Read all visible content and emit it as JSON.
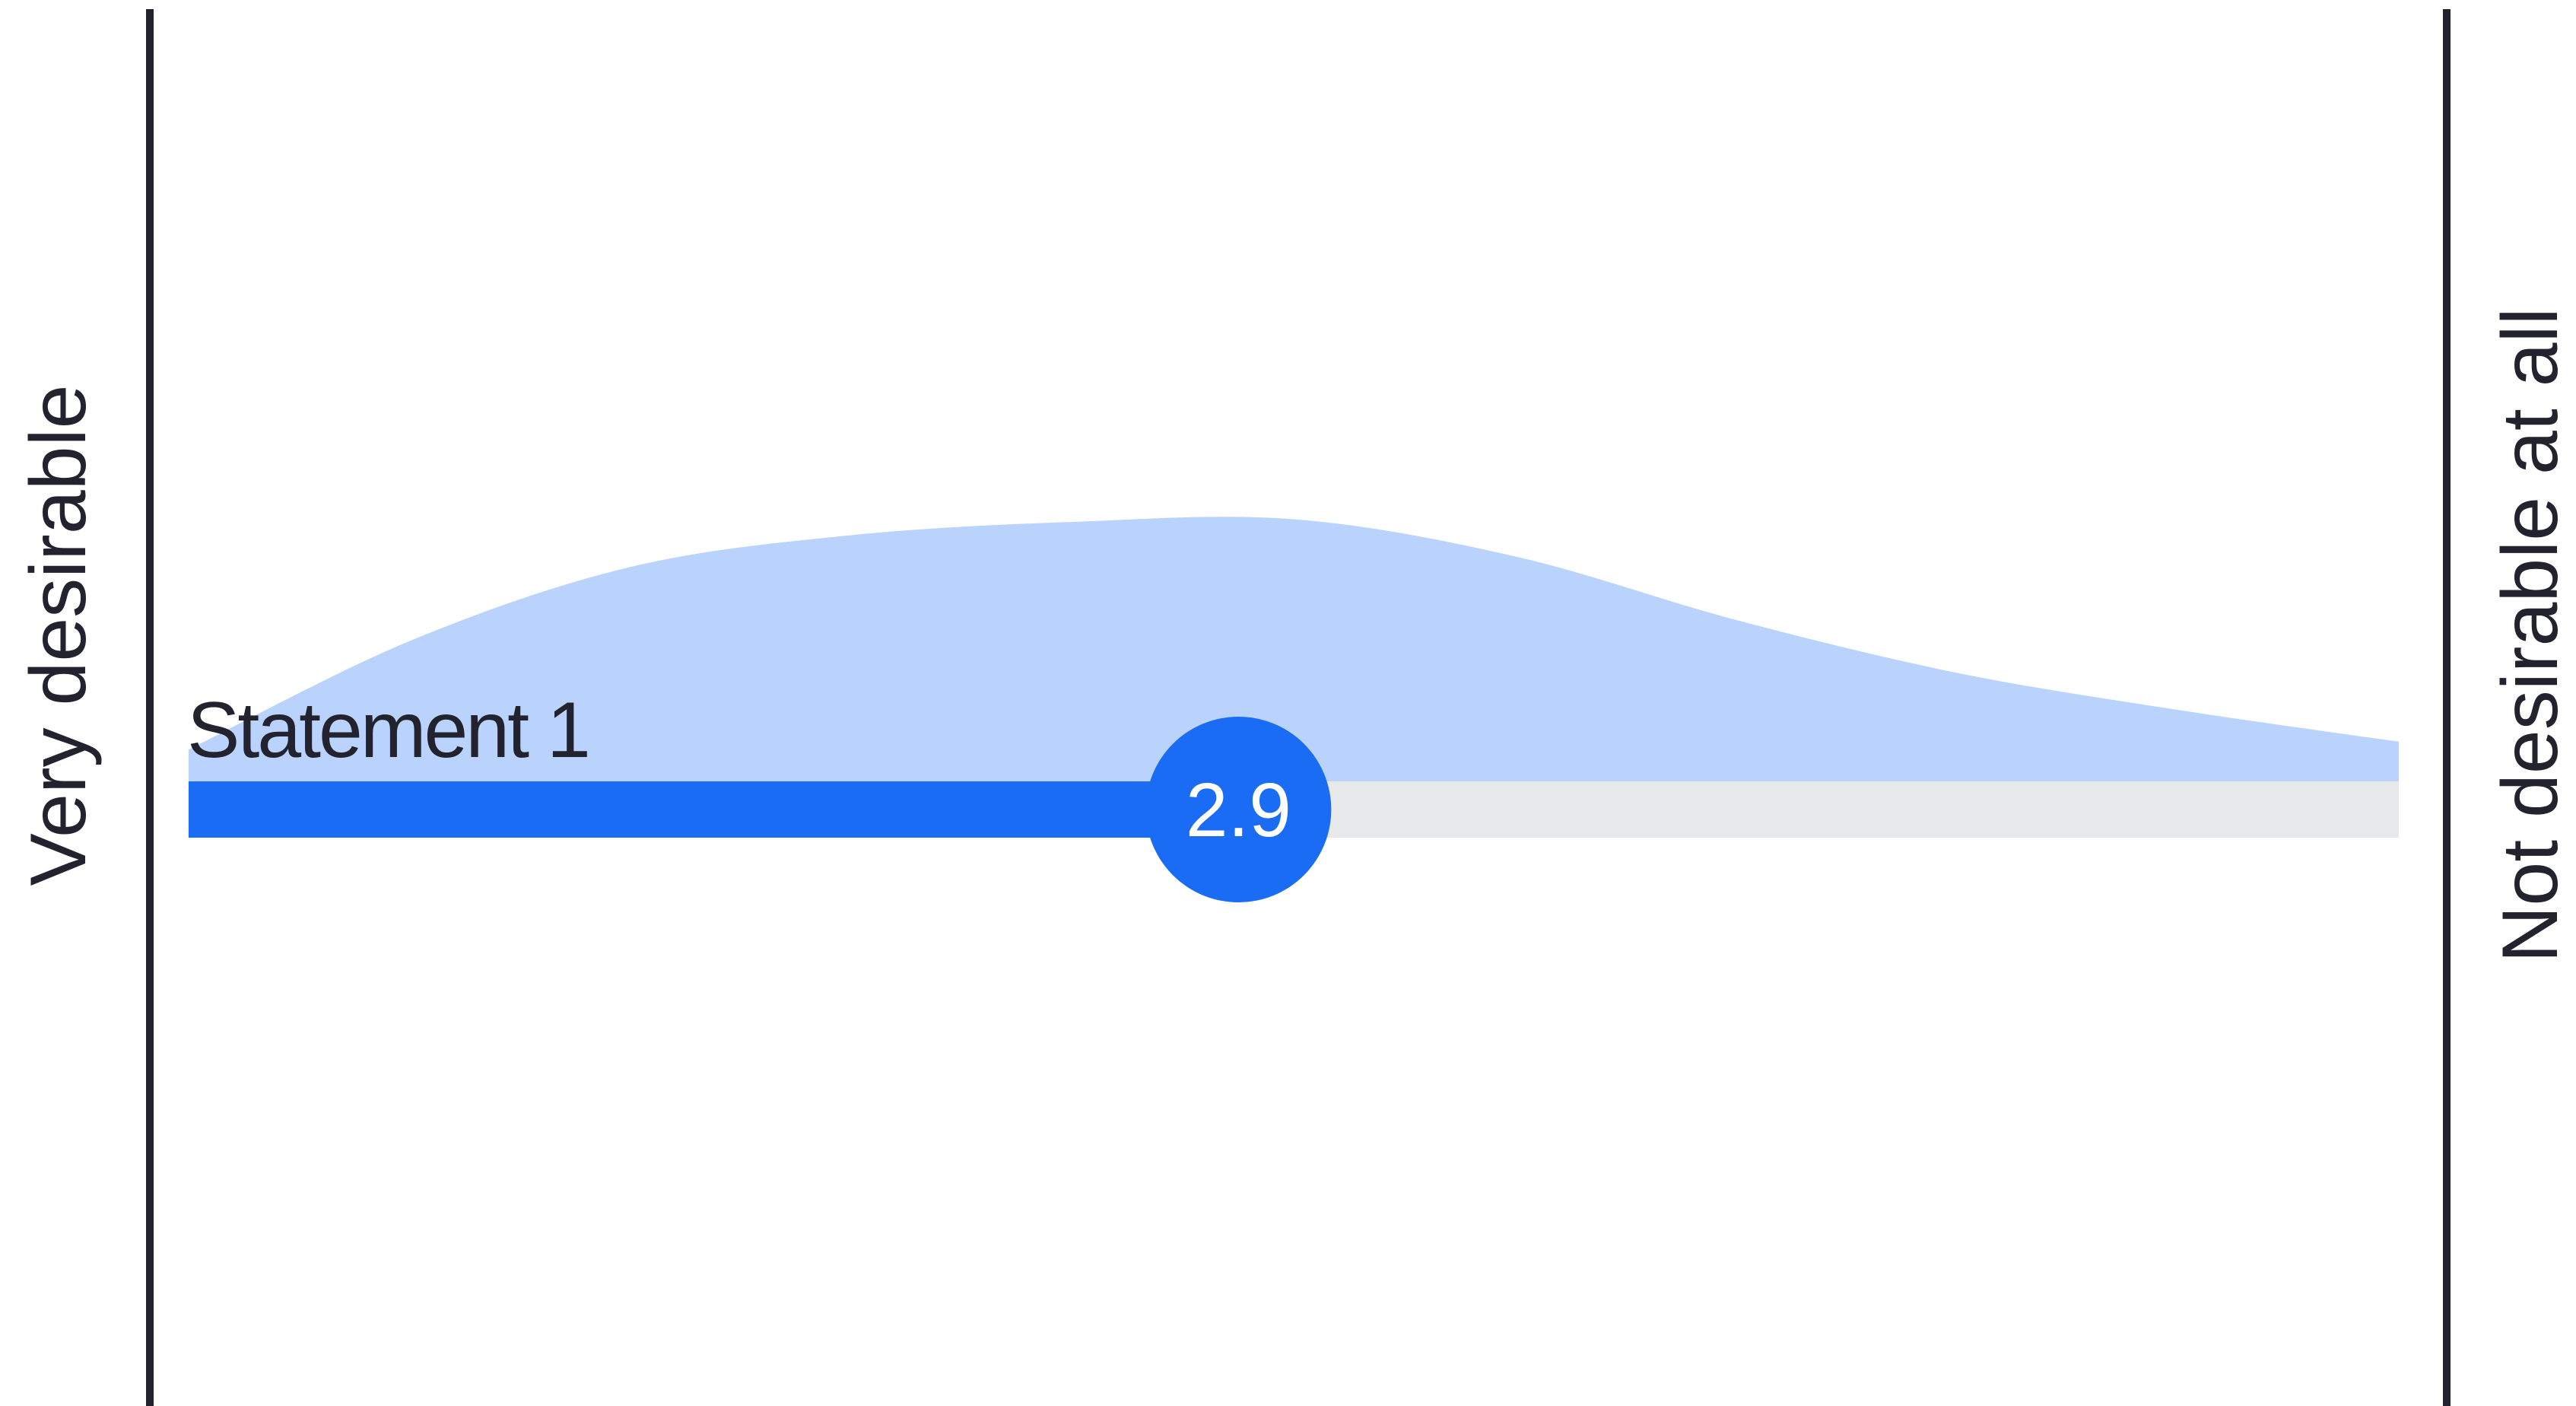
{
  "chart_data": {
    "type": "area",
    "scale_min": 1,
    "scale_max": 5,
    "left_label": "Very desirable",
    "right_label": "Not desirable at all",
    "statement": {
      "label": "Statement 1",
      "value": 2.9,
      "value_label": "2.9"
    },
    "distribution": {
      "x": [
        1.0,
        1.4,
        1.8,
        2.2,
        2.6,
        3.0,
        3.4,
        3.8,
        4.2,
        4.6,
        5.0
      ],
      "density": [
        0.12,
        0.53,
        0.81,
        0.93,
        0.98,
        0.99,
        0.85,
        0.61,
        0.41,
        0.27,
        0.15
      ]
    },
    "colors": {
      "axis": "#23232f",
      "distribution_fill": "#bad3fc",
      "track": "#e7e8ea",
      "bar": "#1a6cf5",
      "marker": "#1a6cf5",
      "marker_text": "#ffffff",
      "text": "#23232f"
    }
  }
}
